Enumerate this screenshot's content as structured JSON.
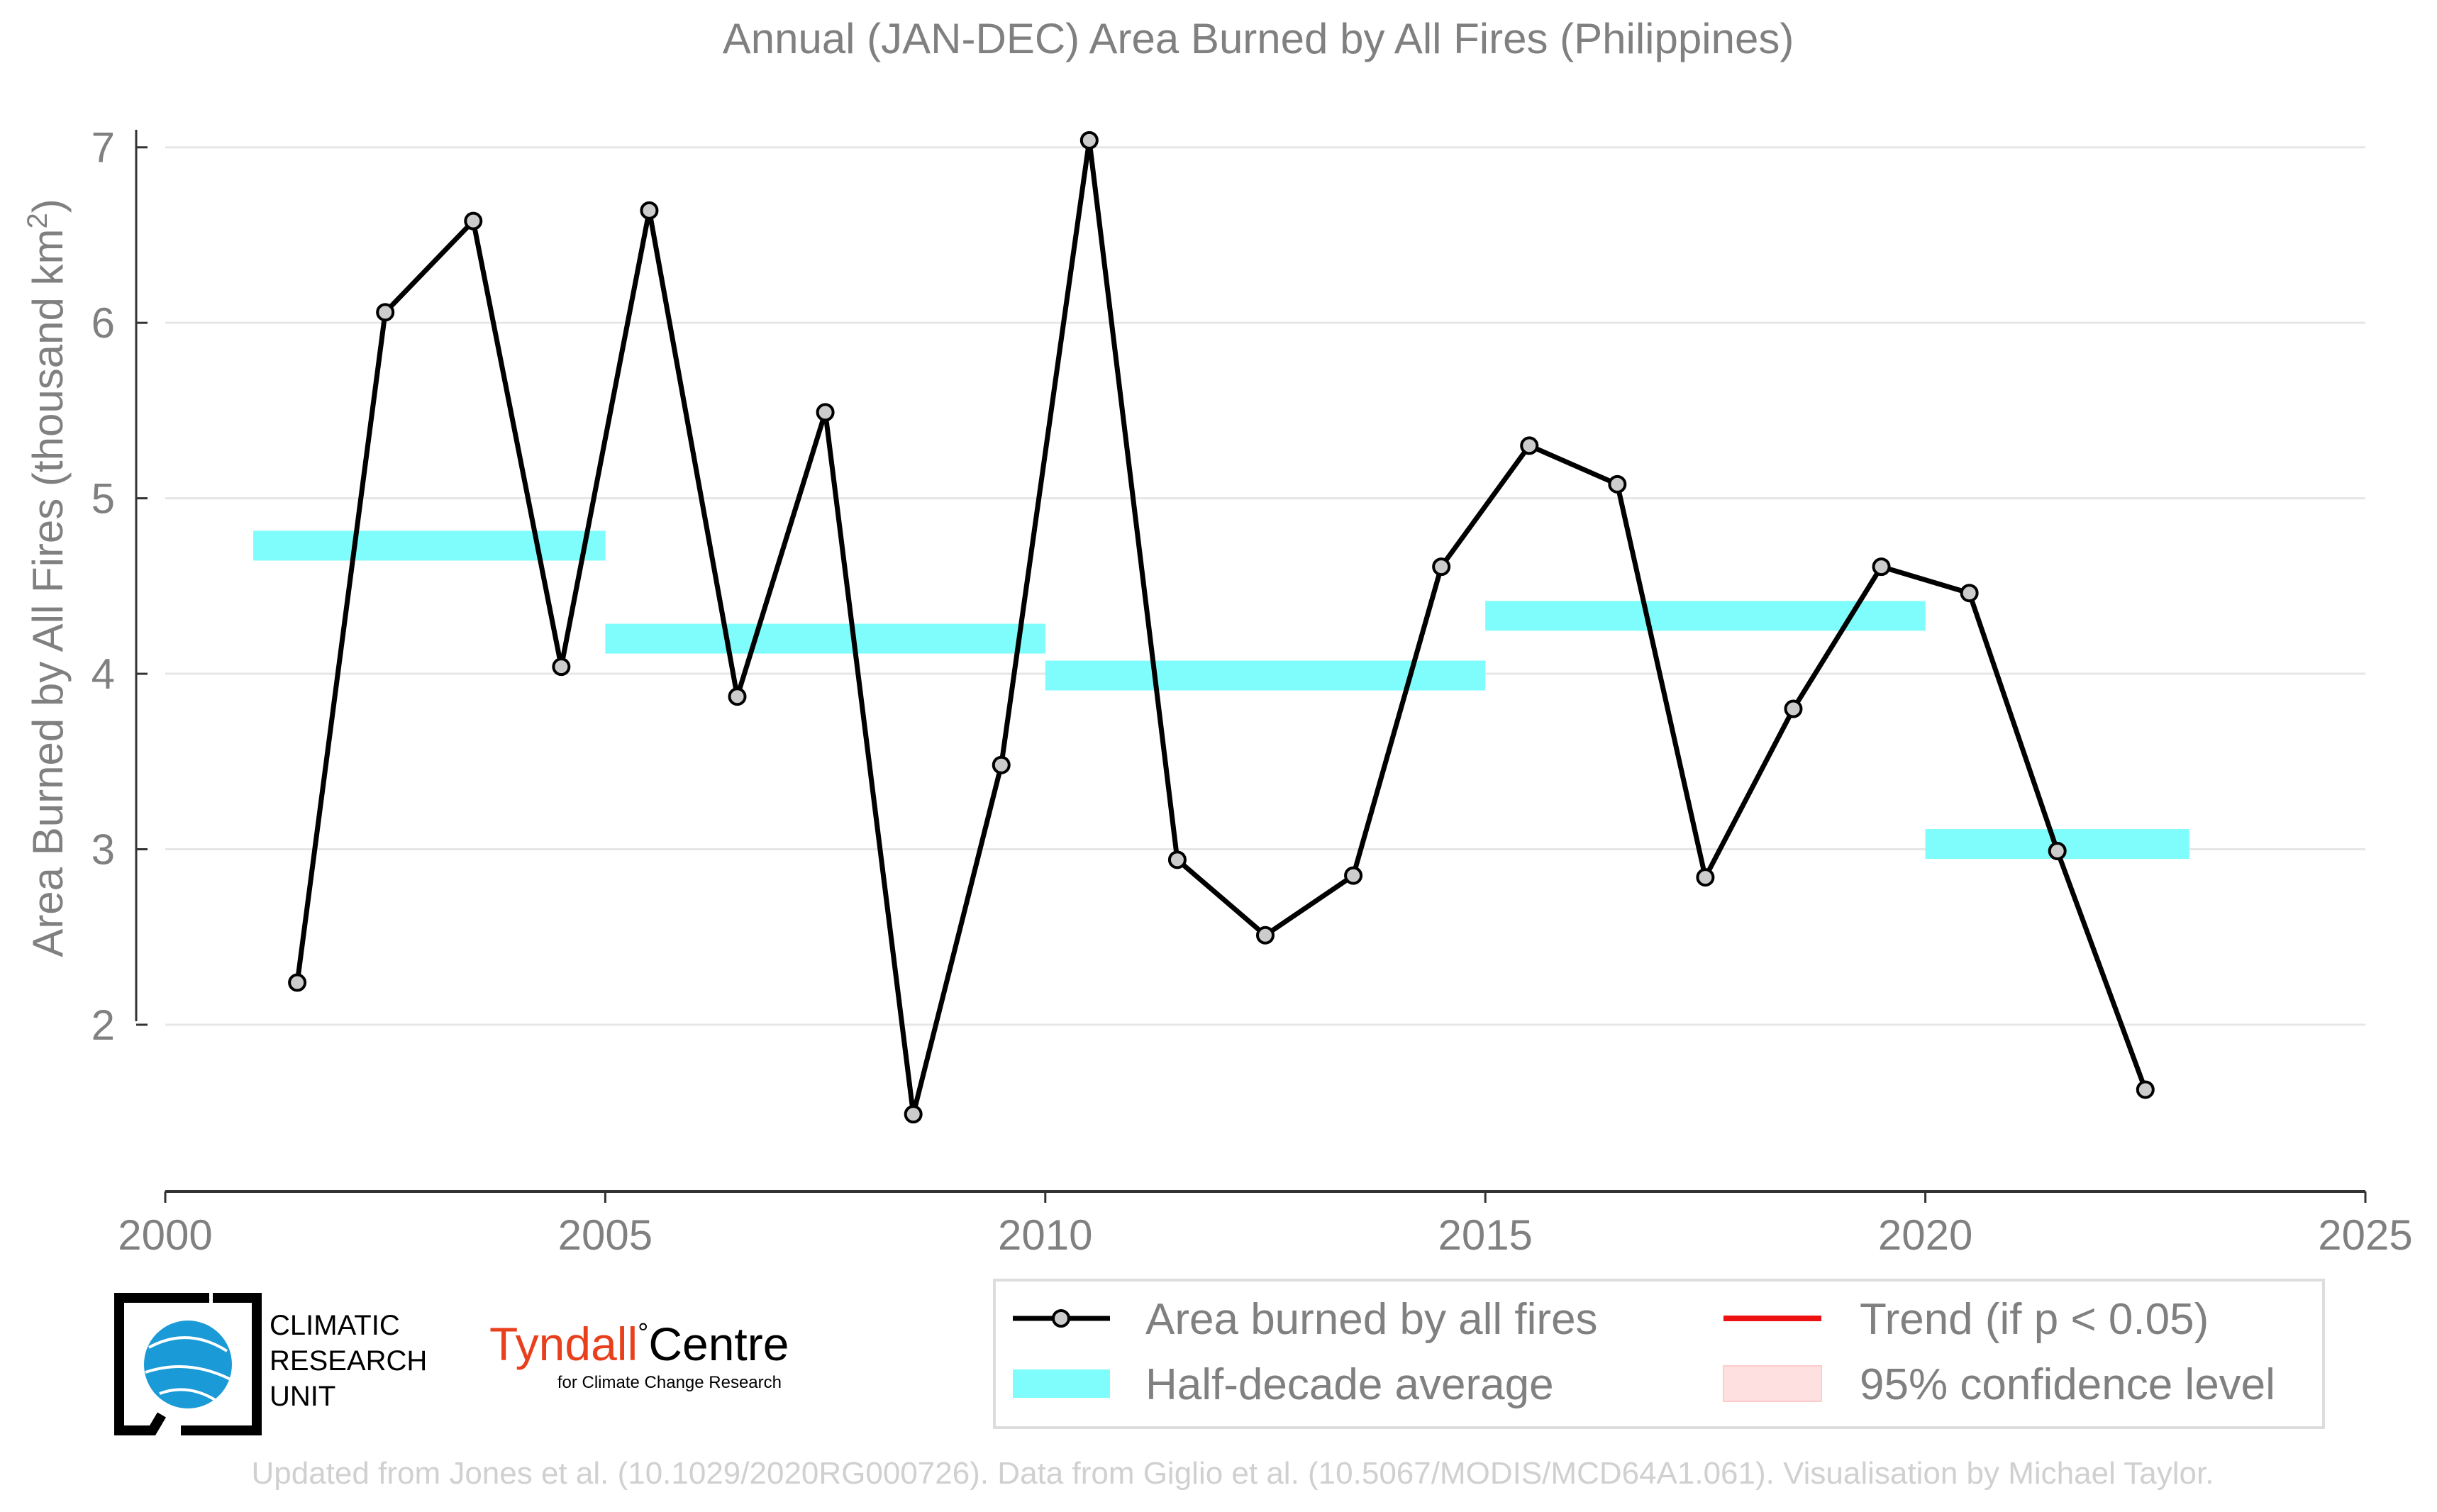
{
  "chart_data": {
    "type": "line",
    "title": "Annual (JAN-DEC) Area Burned by All Fires (Philippines)",
    "ylabel_main": "Area Burned by All Fires (thousand km",
    "ylabel_sup": "2",
    "ylabel_end": ")",
    "xlim": [
      2000,
      2025
    ],
    "ylim": [
      1.05,
      7.1
    ],
    "xticks": [
      2000,
      2005,
      2010,
      2015,
      2020,
      2025
    ],
    "yticks": [
      2,
      3,
      4,
      5,
      6,
      7
    ],
    "grid": "horizontal",
    "series": [
      {
        "name": "Area burned by all fires",
        "x": [
          2001.5,
          2002.5,
          2003.5,
          2004.5,
          2005.5,
          2006.5,
          2007.5,
          2008.5,
          2009.5,
          2010.5,
          2011.5,
          2012.5,
          2013.5,
          2014.5,
          2015.5,
          2016.5,
          2017.5,
          2018.5,
          2019.5,
          2020.5,
          2021.5,
          2022.5
        ],
        "values": [
          2.24,
          6.06,
          6.58,
          4.04,
          6.64,
          3.87,
          5.49,
          1.49,
          3.48,
          7.04,
          2.94,
          2.51,
          2.85,
          4.61,
          5.3,
          5.08,
          2.84,
          3.8,
          4.61,
          4.46,
          2.99,
          1.63
        ],
        "color": "#000000",
        "marker_fill": "#cccccc"
      }
    ],
    "half_decade_averages": [
      {
        "x_start": 2001,
        "x_end": 2005,
        "value": 4.73
      },
      {
        "x_start": 2005,
        "x_end": 2010,
        "value": 4.2
      },
      {
        "x_start": 2010,
        "x_end": 2015,
        "value": 3.99
      },
      {
        "x_start": 2015,
        "x_end": 2020,
        "value": 4.33
      },
      {
        "x_start": 2020,
        "x_end": 2023,
        "value": 3.03
      }
    ],
    "half_decade_color": "#7ffcfc",
    "legend": {
      "placement": "bottom-right",
      "items": [
        {
          "label": "Area burned by all fires",
          "kind": "line-marker",
          "color": "#000000"
        },
        {
          "label": "Trend (if p < 0.05)",
          "kind": "line",
          "color": "#ee1111"
        },
        {
          "label": "Half-decade average",
          "kind": "band",
          "color": "#7ffcfc"
        },
        {
          "label": "95% confidence level",
          "kind": "band",
          "color": "#ffe0e0"
        }
      ]
    },
    "footer": "Updated from Jones et al. (10.1029/2020RG000726). Data from Giglio et al. (10.5067/MODIS/MCD64A1.061). Visualisation by Michael Taylor."
  },
  "logos": {
    "cru_line1": "CLIMATIC",
    "cru_line2": "RESEARCH",
    "cru_line3": "UNIT",
    "tyndall_name": "Tyndall",
    "tyndall_degree": "°",
    "tyndall_centre": "Centre",
    "tyndall_sub": "for Climate Change Research",
    "tyndall_color": "#e8401c",
    "cru_globe_color": "#1a9ad6"
  }
}
